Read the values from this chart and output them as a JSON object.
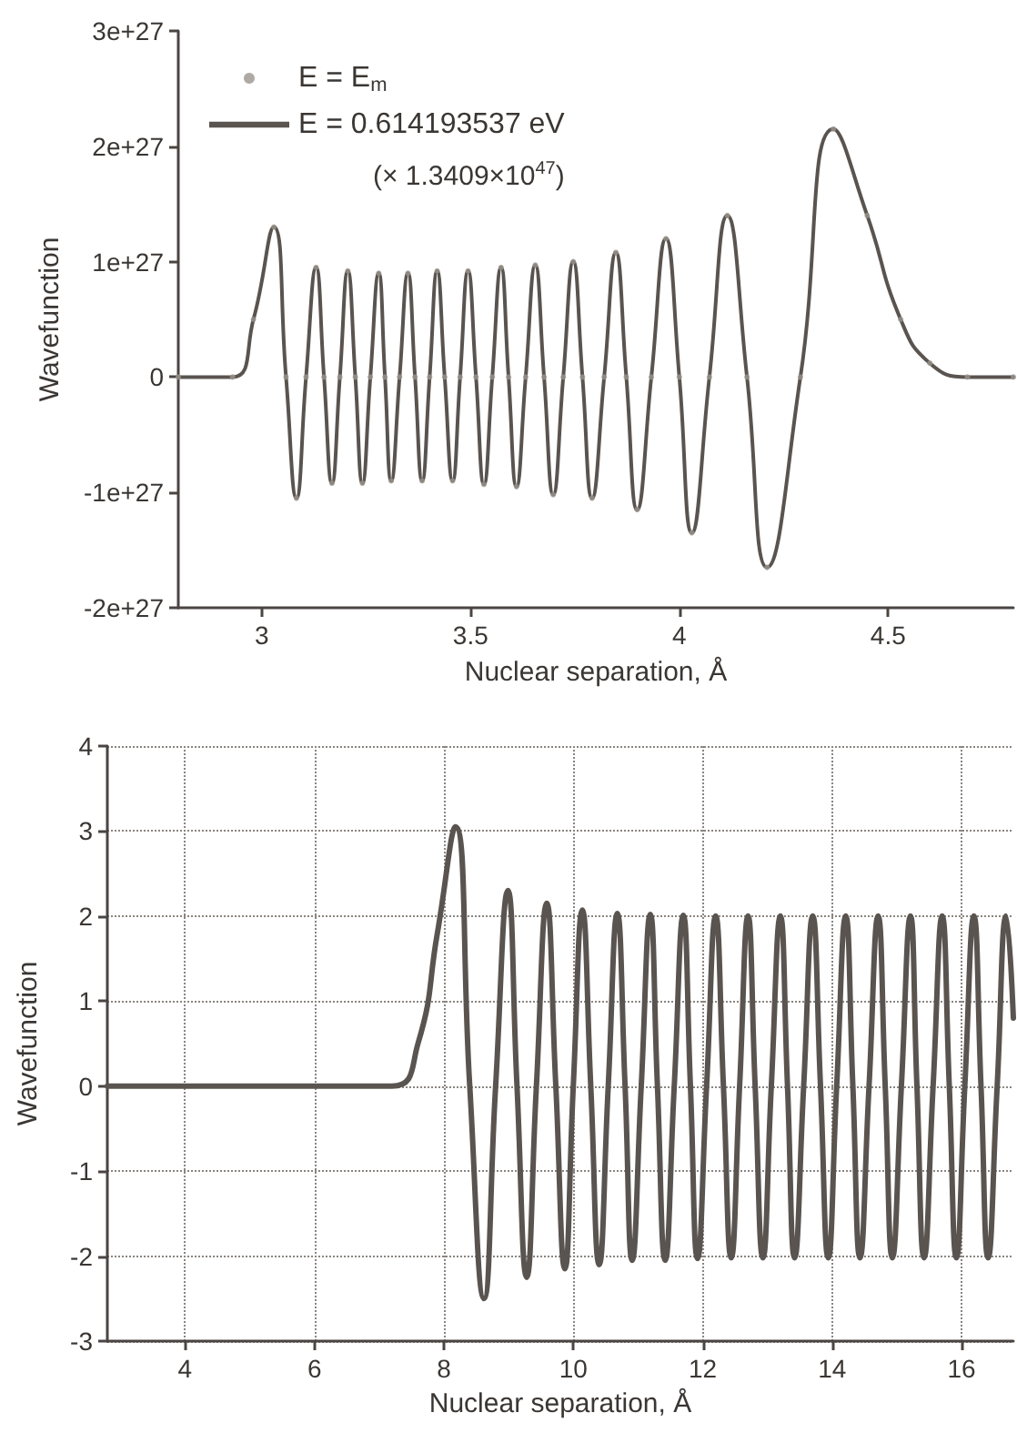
{
  "chart_data": [
    {
      "type": "line",
      "xlabel": "Nuclear separation, Å",
      "ylabel": "Wavefunction",
      "legend": "top left",
      "grid": false,
      "annotations": [
        "(× 1.3409×10$^{47}$)"
      ],
      "xlim": [
        2.8,
        4.8
      ],
      "xticks": [
        3.0,
        3.5,
        4.0,
        4.5
      ],
      "ylim": [
        -2e+27,
        3e+27
      ],
      "yticks": [
        {
          "value": -2e+27,
          "label": "-2e+27"
        },
        {
          "value": -1e+27,
          "label": "-1e+27"
        },
        {
          "value": 0,
          "label": "0"
        },
        {
          "value": 1e+27,
          "label": "1e+27"
        },
        {
          "value": 2e+27,
          "label": "2e+27"
        },
        {
          "value": 3e+27,
          "label": "3e+27"
        }
      ],
      "x": [
        2.8,
        2.93,
        2.98,
        3.029,
        3.058,
        3.083,
        3.106,
        3.13,
        3.149,
        3.168,
        3.187,
        3.206,
        3.224,
        3.241,
        3.26,
        3.28,
        3.295,
        3.31,
        3.33,
        3.35,
        3.367,
        3.384,
        3.402,
        3.42,
        3.438,
        3.457,
        3.475,
        3.494,
        3.513,
        3.532,
        3.552,
        3.573,
        3.591,
        3.61,
        3.632,
        3.655,
        3.676,
        3.698,
        3.722,
        3.746,
        3.768,
        3.791,
        3.82,
        3.848,
        3.873,
        3.899,
        3.933,
        3.968,
        4.0,
        4.03,
        4.072,
        4.115,
        4.162,
        4.21,
        4.29,
        4.369,
        4.45,
        4.53,
        4.6,
        4.69,
        4.8
      ],
      "series": [
        {
          "name": "E = E$_{m}$",
          "type": "scatter",
          "marker": "circle",
          "color": "#9a948c",
          "values": [
            0,
            0,
            5e+26,
            1.3e+27,
            0,
            -1.05e+27,
            0,
            9.5e+26,
            0,
            -9.2e+26,
            0,
            9.2e+26,
            0,
            -9.2e+26,
            0,
            9e+26,
            0,
            -9e+26,
            0,
            9e+26,
            0,
            -9e+26,
            0,
            9.2e+26,
            0,
            -9e+26,
            0,
            9.2e+26,
            0,
            -9.3e+26,
            0,
            9.5e+26,
            0,
            -9.5e+26,
            0,
            9.7e+26,
            0,
            -1.02e+27,
            0,
            1e+27,
            0,
            -1.05e+27,
            0,
            1.08e+27,
            0,
            -1.15e+27,
            0,
            1.2e+27,
            0,
            -1.35e+27,
            0,
            1.4e+27,
            0,
            -1.65e+27,
            0,
            2.15e+27,
            1.4e+27,
            5e+26,
            1.2e+26,
            0,
            0
          ]
        },
        {
          "name": "E = 0.614193537 eV",
          "type": "line",
          "marker": "none",
          "line_style": "solid",
          "color": "#5a5450",
          "values": [
            0,
            0,
            5e+26,
            1.3e+27,
            0,
            -1.05e+27,
            0,
            9.5e+26,
            0,
            -9.2e+26,
            0,
            9.2e+26,
            0,
            -9.2e+26,
            0,
            9e+26,
            0,
            -9e+26,
            0,
            9e+26,
            0,
            -9e+26,
            0,
            9.2e+26,
            0,
            -9e+26,
            0,
            9.2e+26,
            0,
            -9.3e+26,
            0,
            9.5e+26,
            0,
            -9.5e+26,
            0,
            9.7e+26,
            0,
            -1.02e+27,
            0,
            1e+27,
            0,
            -1.05e+27,
            0,
            1.08e+27,
            0,
            -1.15e+27,
            0,
            1.2e+27,
            0,
            -1.35e+27,
            0,
            1.4e+27,
            0,
            -1.65e+27,
            0,
            2.15e+27,
            1.4e+27,
            5e+26,
            1.2e+26,
            0,
            0
          ]
        }
      ]
    },
    {
      "type": "line",
      "xlabel": "Nuclear separation, Å",
      "ylabel": "Wavefunction",
      "grid": true,
      "marker": "none",
      "line_style": "solid",
      "xlim": [
        2.8,
        16.8
      ],
      "xticks": [
        4,
        6,
        8,
        10,
        12,
        14,
        16
      ],
      "ylim": [
        -3,
        4
      ],
      "yticks": [
        -3,
        -2,
        -1,
        0,
        1,
        2,
        3,
        4
      ],
      "x": [
        2.8,
        7.2,
        7.6,
        7.9,
        8.18,
        8.4,
        8.62,
        8.8,
        8.99,
        9.13,
        9.28,
        9.43,
        9.59,
        9.73,
        9.87,
        10.0,
        10.14,
        10.27,
        10.4,
        10.54,
        10.68,
        10.8,
        10.91,
        11.05,
        11.19,
        11.3,
        11.42,
        11.56,
        11.7,
        11.81,
        11.92,
        12.06,
        12.2,
        12.32,
        12.44,
        12.57,
        12.7,
        12.81,
        12.93,
        13.06,
        13.2,
        13.31,
        13.42,
        13.56,
        13.7,
        13.82,
        13.94,
        14.07,
        14.21,
        14.32,
        14.43,
        14.57,
        14.71,
        14.82,
        14.93,
        15.07,
        15.21,
        15.31,
        15.42,
        15.56,
        15.7,
        15.81,
        15.92,
        16.05,
        16.19,
        16.3,
        16.41,
        16.55,
        16.69,
        16.8
      ],
      "series": [
        {
          "color": "#5a5450",
          "values": [
            0,
            0,
            0.5,
            1.8,
            3.05,
            0,
            -2.5,
            0,
            2.3,
            0,
            -2.25,
            0,
            2.15,
            0,
            -2.15,
            0,
            2.07,
            0,
            -2.1,
            0,
            2.03,
            0,
            -2.05,
            0,
            2.02,
            0,
            -2.05,
            0,
            2.01,
            0,
            -2.03,
            0,
            2.0,
            0,
            -2.02,
            0,
            2.0,
            0,
            -2.02,
            0,
            2.0,
            0,
            -2.02,
            0,
            2.0,
            0,
            -2.02,
            0,
            2.0,
            0,
            -2.02,
            0,
            2.0,
            0,
            -2.02,
            0,
            2.0,
            0,
            -2.02,
            0,
            2.0,
            0,
            -2.02,
            0,
            2.0,
            0,
            -2.02,
            0,
            2.0,
            0.8
          ]
        }
      ]
    }
  ]
}
